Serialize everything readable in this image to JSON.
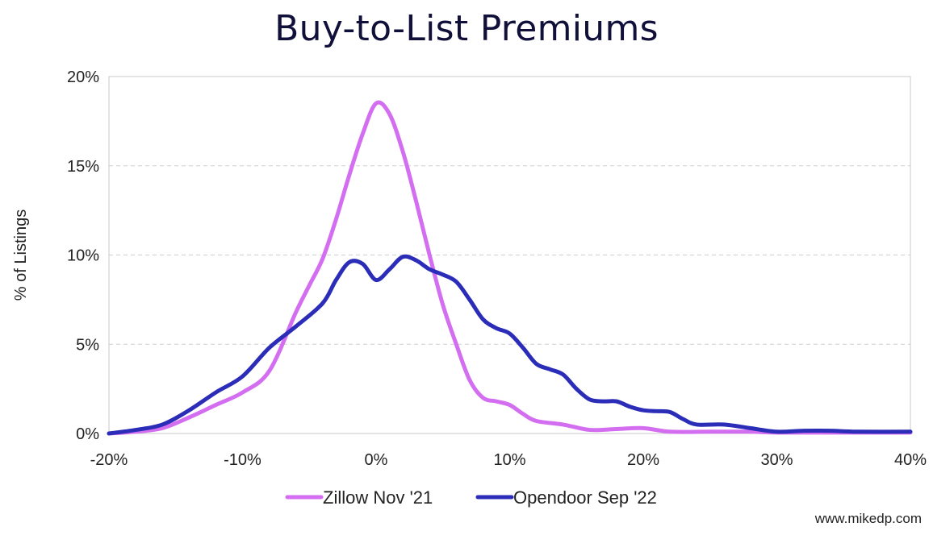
{
  "chart_data": {
    "type": "line",
    "title": "Buy-to-List Premiums",
    "xlabel": "",
    "ylabel": "% of Listings",
    "xlim": [
      -20,
      40
    ],
    "ylim": [
      0,
      20
    ],
    "x_ticks": [
      "-20%",
      "-10%",
      "0%",
      "10%",
      "20%",
      "30%",
      "40%"
    ],
    "y_ticks": [
      "0%",
      "5%",
      "10%",
      "15%",
      "20%"
    ],
    "grid": true,
    "legend_position": "bottom",
    "series": [
      {
        "name": "Zillow Nov '21",
        "color": "#d46ef0",
        "x": [
          -20,
          -18,
          -16,
          -14,
          -12,
          -10,
          -8,
          -6,
          -5,
          -4,
          -3,
          -2,
          -1,
          0,
          1,
          2,
          3,
          4,
          5,
          6,
          7,
          8,
          9,
          10,
          11,
          12,
          14,
          16,
          18,
          20,
          22,
          25,
          28,
          30,
          35,
          40
        ],
        "values": [
          0,
          0.1,
          0.3,
          0.9,
          1.6,
          2.3,
          3.5,
          6.8,
          8.3,
          9.8,
          12,
          14.5,
          16.8,
          18.5,
          17.9,
          15.8,
          13,
          10,
          7.2,
          5,
          3,
          2,
          1.8,
          1.6,
          1.1,
          0.7,
          0.5,
          0.2,
          0.25,
          0.3,
          0.1,
          0.1,
          0.1,
          0.05,
          0.05,
          0.05
        ]
      },
      {
        "name": "Opendoor Sep '22",
        "color": "#2b2db8",
        "x": [
          -20,
          -18,
          -16,
          -14,
          -12,
          -10,
          -8,
          -6,
          -4,
          -3,
          -2,
          -1,
          0,
          1,
          2,
          3,
          4,
          5,
          6,
          7,
          8,
          9,
          10,
          11,
          12,
          13,
          14,
          15,
          16,
          17,
          18,
          19,
          20,
          21,
          22,
          23,
          24,
          26,
          28,
          30,
          32,
          34,
          36,
          40
        ],
        "values": [
          0,
          0.2,
          0.5,
          1.3,
          2.3,
          3.2,
          4.8,
          6,
          7.3,
          8.6,
          9.6,
          9.5,
          8.6,
          9.2,
          9.9,
          9.7,
          9.2,
          8.9,
          8.5,
          7.5,
          6.4,
          5.9,
          5.6,
          4.8,
          3.9,
          3.6,
          3.3,
          2.5,
          1.9,
          1.8,
          1.8,
          1.5,
          1.3,
          1.25,
          1.2,
          0.8,
          0.5,
          0.5,
          0.3,
          0.1,
          0.15,
          0.15,
          0.1,
          0.1
        ]
      }
    ]
  },
  "footer": "www.mikedp.com"
}
